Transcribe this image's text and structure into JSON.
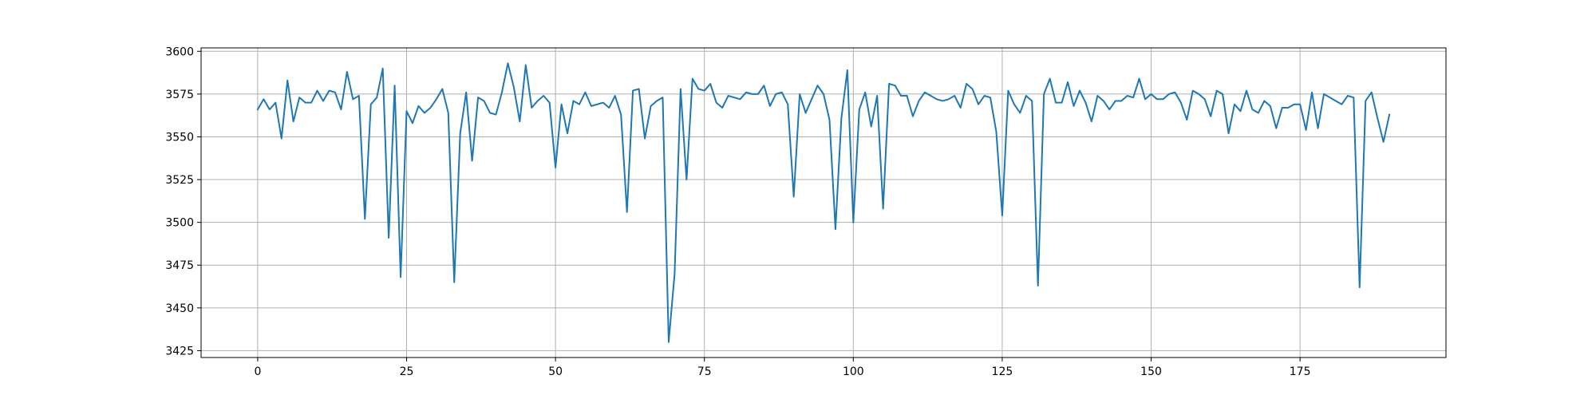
{
  "chart_data": {
    "type": "line",
    "title": "",
    "xlabel": "",
    "ylabel": "",
    "xlim": [
      -9.5,
      199.5
    ],
    "ylim": [
      3421,
      3602
    ],
    "grid": true,
    "x_ticks": [
      0,
      25,
      50,
      75,
      100,
      125,
      150,
      175
    ],
    "y_ticks": [
      3425,
      3450,
      3475,
      3500,
      3525,
      3550,
      3575,
      3600
    ],
    "colors": {
      "series": "#1f77b4",
      "grid": "#b0b0b0",
      "axes": "#000000"
    },
    "series": [
      {
        "values": [
          3566,
          3572,
          3566,
          3570,
          3549,
          3583,
          3559,
          3573,
          3570,
          3570,
          3577,
          3571,
          3577,
          3576,
          3566,
          3588,
          3572,
          3574,
          3502,
          3569,
          3573,
          3590,
          3491,
          3580,
          3468,
          3565,
          3558,
          3568,
          3564,
          3567,
          3572,
          3578,
          3564,
          3465,
          3552,
          3576,
          3536,
          3573,
          3571,
          3564,
          3563,
          3576,
          3593,
          3579,
          3559,
          3592,
          3567,
          3571,
          3574,
          3570,
          3532,
          3569,
          3552,
          3571,
          3569,
          3576,
          3568,
          3569,
          3570,
          3567,
          3574,
          3563,
          3506,
          3577,
          3578,
          3549,
          3568,
          3571,
          3573,
          3430,
          3470,
          3578,
          3525,
          3584,
          3578,
          3577,
          3581,
          3570,
          3567,
          3574,
          3573,
          3572,
          3576,
          3575,
          3575,
          3580,
          3568,
          3575,
          3576,
          3569,
          3515,
          3575,
          3564,
          3572,
          3580,
          3575,
          3560,
          3496,
          3561,
          3589,
          3500,
          3566,
          3576,
          3556,
          3574,
          3508,
          3581,
          3580,
          3574,
          3574,
          3562,
          3571,
          3576,
          3574,
          3572,
          3571,
          3572,
          3574,
          3567,
          3581,
          3578,
          3569,
          3574,
          3573,
          3553,
          3504,
          3577,
          3569,
          3564,
          3574,
          3571,
          3463,
          3575,
          3584,
          3570,
          3570,
          3582,
          3568,
          3577,
          3570,
          3559,
          3574,
          3571,
          3566,
          3571,
          3571,
          3574,
          3573,
          3584,
          3572,
          3575,
          3572,
          3572,
          3575,
          3576,
          3570,
          3560,
          3577,
          3575,
          3572,
          3562,
          3577,
          3575,
          3552,
          3569,
          3565,
          3577,
          3566,
          3564,
          3571,
          3568,
          3555,
          3567,
          3567,
          3569,
          3569,
          3554,
          3576,
          3555,
          3575,
          3573,
          3571,
          3569,
          3574,
          3573,
          3462,
          3571,
          3576,
          3561,
          3547,
          3563
        ]
      }
    ]
  }
}
